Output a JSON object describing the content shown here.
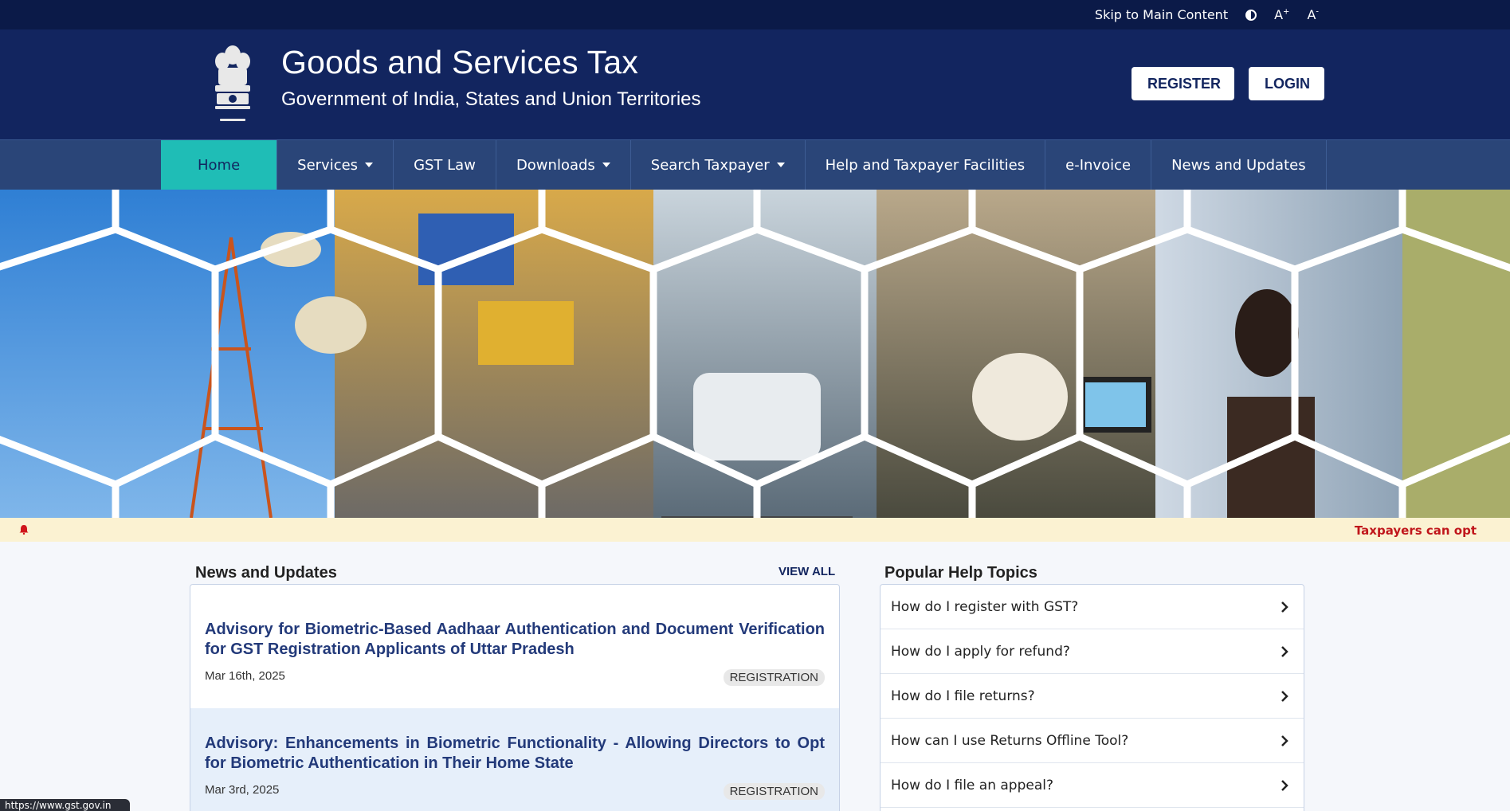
{
  "topbar": {
    "skip_label": "Skip to Main Content",
    "contrast_icon": "contrast-icon",
    "font_increase": "A",
    "font_increase_sup": "+",
    "font_decrease": "A",
    "font_decrease_sup": "-"
  },
  "header": {
    "emblem_icon": "national-emblem",
    "title": "Goods and Services Tax",
    "subtitle": "Government of India, States and Union Territories",
    "register_label": "REGISTER",
    "login_label": "LOGIN"
  },
  "nav": {
    "items": [
      {
        "label": "Home",
        "active": true
      },
      {
        "label": "Services",
        "dropdown": true
      },
      {
        "label": "GST Law"
      },
      {
        "label": "Downloads",
        "dropdown": true
      },
      {
        "label": "Search Taxpayer",
        "dropdown": true
      },
      {
        "label": "Help and Taxpayer Facilities"
      },
      {
        "label": "e-Invoice"
      },
      {
        "label": "News and Updates"
      }
    ]
  },
  "ticker": {
    "icon": "bell-icon",
    "text": "Taxpayers can opt"
  },
  "news": {
    "heading": "News and Updates",
    "view_all": "VIEW ALL",
    "items": [
      {
        "title": "Advisory for Biometric-Based Aadhaar Authentication and Document Verification for GST Registration Applicants of Uttar Pradesh",
        "date": "Mar 16th, 2025",
        "tag": "REGISTRATION"
      },
      {
        "title": "Advisory: Enhancements in Biometric Functionality - Allowing Directors to Opt for Biometric Authentication in Their Home State",
        "date": "Mar 3rd, 2025",
        "tag": "REGISTRATION"
      }
    ]
  },
  "help": {
    "heading": "Popular Help Topics",
    "items": [
      "How do I register with GST?",
      "How do I apply for refund?",
      "How do I file returns?",
      "How can I use Returns Offline Tool?",
      "How do I file an appeal?"
    ]
  },
  "statusbar": {
    "url": "https://www.gst.gov.in"
  },
  "colors": {
    "header_bg": "#12255f",
    "nav_bg": "#2a4578",
    "active_tab": "#1fbdb6",
    "ticker_bg": "#fbf2d2",
    "ticker_text": "#c0161b"
  }
}
